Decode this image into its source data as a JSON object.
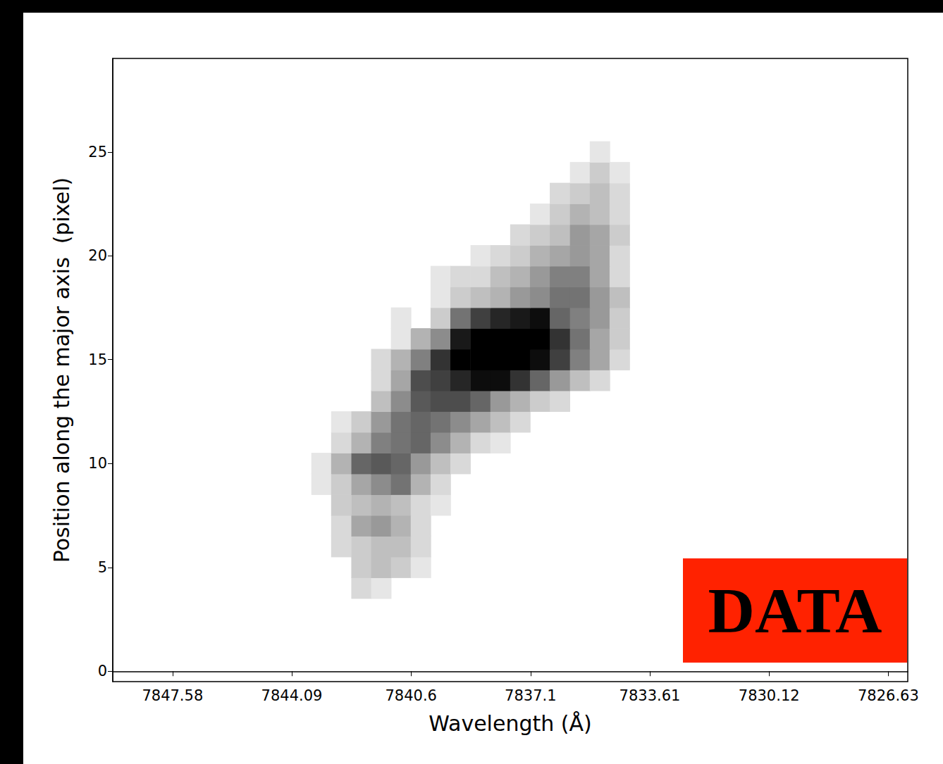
{
  "chart_data": {
    "type": "heatmap",
    "x_label": "Wavelength (Å)",
    "y_label": "Position along the major axis  (pixel)",
    "annotation": "DATA",
    "xlim": [
      7849.33,
      7826.06
    ],
    "xticks": [
      7847.58,
      7844.09,
      7840.6,
      7837.1,
      7833.61,
      7830.12,
      7826.63
    ],
    "ylim": [
      -0.5,
      29.5
    ],
    "yticks": [
      0,
      5,
      10,
      15,
      20,
      25
    ],
    "grid": false,
    "color_range": [
      0,
      1
    ],
    "cells": [
      [
        7842.05,
        4,
        0.15
      ],
      [
        7841.47,
        4,
        0.1
      ],
      [
        7842.05,
        5,
        0.2
      ],
      [
        7841.47,
        5,
        0.25
      ],
      [
        7840.89,
        5,
        0.2
      ],
      [
        7840.31,
        5,
        0.1
      ],
      [
        7842.64,
        6,
        0.15
      ],
      [
        7842.05,
        6,
        0.2
      ],
      [
        7841.47,
        6,
        0.25
      ],
      [
        7840.89,
        6,
        0.25
      ],
      [
        7840.31,
        6,
        0.15
      ],
      [
        7842.64,
        7,
        0.15
      ],
      [
        7842.05,
        7,
        0.35
      ],
      [
        7841.47,
        7,
        0.4
      ],
      [
        7840.89,
        7,
        0.3
      ],
      [
        7840.31,
        7,
        0.15
      ],
      [
        7842.64,
        8,
        0.2
      ],
      [
        7842.05,
        8,
        0.25
      ],
      [
        7841.47,
        8,
        0.3
      ],
      [
        7840.89,
        8,
        0.25
      ],
      [
        7840.31,
        8,
        0.15
      ],
      [
        7839.73,
        8,
        0.1
      ],
      [
        7843.22,
        9,
        0.1
      ],
      [
        7842.64,
        9,
        0.2
      ],
      [
        7842.05,
        9,
        0.35
      ],
      [
        7841.47,
        9,
        0.45
      ],
      [
        7840.89,
        9,
        0.55
      ],
      [
        7840.31,
        9,
        0.3
      ],
      [
        7839.73,
        9,
        0.15
      ],
      [
        7843.22,
        10,
        0.1
      ],
      [
        7842.64,
        10,
        0.3
      ],
      [
        7842.05,
        10,
        0.6
      ],
      [
        7841.47,
        10,
        0.65
      ],
      [
        7840.89,
        10,
        0.6
      ],
      [
        7840.31,
        10,
        0.4
      ],
      [
        7839.73,
        10,
        0.25
      ],
      [
        7839.15,
        10,
        0.15
      ],
      [
        7842.64,
        11,
        0.15
      ],
      [
        7842.05,
        11,
        0.3
      ],
      [
        7841.47,
        11,
        0.5
      ],
      [
        7840.89,
        11,
        0.55
      ],
      [
        7840.31,
        11,
        0.6
      ],
      [
        7839.73,
        11,
        0.45
      ],
      [
        7839.15,
        11,
        0.3
      ],
      [
        7838.56,
        11,
        0.15
      ],
      [
        7837.98,
        11,
        0.1
      ],
      [
        7842.64,
        12,
        0.1
      ],
      [
        7842.05,
        12,
        0.2
      ],
      [
        7841.47,
        12,
        0.4
      ],
      [
        7840.89,
        12,
        0.55
      ],
      [
        7840.31,
        12,
        0.6
      ],
      [
        7839.73,
        12,
        0.55
      ],
      [
        7839.15,
        12,
        0.45
      ],
      [
        7838.56,
        12,
        0.35
      ],
      [
        7837.98,
        12,
        0.25
      ],
      [
        7837.4,
        12,
        0.15
      ],
      [
        7841.47,
        13,
        0.25
      ],
      [
        7840.89,
        13,
        0.45
      ],
      [
        7840.31,
        13,
        0.65
      ],
      [
        7839.73,
        13,
        0.7
      ],
      [
        7839.15,
        13,
        0.7
      ],
      [
        7838.56,
        13,
        0.6
      ],
      [
        7837.98,
        13,
        0.4
      ],
      [
        7837.4,
        13,
        0.3
      ],
      [
        7836.82,
        13,
        0.2
      ],
      [
        7836.24,
        13,
        0.15
      ],
      [
        7841.47,
        14,
        0.15
      ],
      [
        7840.89,
        14,
        0.35
      ],
      [
        7840.31,
        14,
        0.7
      ],
      [
        7839.73,
        14,
        0.75
      ],
      [
        7839.15,
        14,
        0.85
      ],
      [
        7838.56,
        14,
        0.95
      ],
      [
        7837.98,
        14,
        0.95
      ],
      [
        7837.4,
        14,
        0.8
      ],
      [
        7836.82,
        14,
        0.6
      ],
      [
        7836.24,
        14,
        0.4
      ],
      [
        7835.65,
        14,
        0.25
      ],
      [
        7835.07,
        14,
        0.15
      ],
      [
        7841.47,
        15,
        0.15
      ],
      [
        7840.89,
        15,
        0.3
      ],
      [
        7840.31,
        15,
        0.5
      ],
      [
        7839.73,
        15,
        0.8
      ],
      [
        7839.15,
        15,
        1
      ],
      [
        7838.56,
        15,
        1
      ],
      [
        7837.98,
        15,
        1
      ],
      [
        7837.4,
        15,
        1
      ],
      [
        7836.82,
        15,
        0.95
      ],
      [
        7836.24,
        15,
        0.75
      ],
      [
        7835.65,
        15,
        0.5
      ],
      [
        7835.07,
        15,
        0.35
      ],
      [
        7834.49,
        15,
        0.15
      ],
      [
        7840.89,
        16,
        0.1
      ],
      [
        7840.31,
        16,
        0.3
      ],
      [
        7839.73,
        16,
        0.45
      ],
      [
        7839.15,
        16,
        0.9
      ],
      [
        7838.56,
        16,
        1
      ],
      [
        7837.98,
        16,
        1
      ],
      [
        7837.4,
        16,
        1
      ],
      [
        7836.82,
        16,
        1
      ],
      [
        7836.24,
        16,
        0.8
      ],
      [
        7835.65,
        16,
        0.55
      ],
      [
        7835.07,
        16,
        0.35
      ],
      [
        7834.49,
        16,
        0.2
      ],
      [
        7840.89,
        17,
        0.1
      ],
      [
        7839.73,
        17,
        0.2
      ],
      [
        7839.15,
        17,
        0.55
      ],
      [
        7838.56,
        17,
        0.75
      ],
      [
        7837.98,
        17,
        0.85
      ],
      [
        7837.4,
        17,
        0.9
      ],
      [
        7836.82,
        17,
        0.95
      ],
      [
        7836.24,
        17,
        0.6
      ],
      [
        7835.65,
        17,
        0.5
      ],
      [
        7835.07,
        17,
        0.4
      ],
      [
        7834.49,
        17,
        0.2
      ],
      [
        7839.73,
        18,
        0.1
      ],
      [
        7839.15,
        18,
        0.2
      ],
      [
        7838.56,
        18,
        0.25
      ],
      [
        7837.98,
        18,
        0.3
      ],
      [
        7837.4,
        18,
        0.4
      ],
      [
        7836.82,
        18,
        0.45
      ],
      [
        7836.24,
        18,
        0.55
      ],
      [
        7835.65,
        18,
        0.55
      ],
      [
        7835.07,
        18,
        0.4
      ],
      [
        7834.49,
        18,
        0.25
      ],
      [
        7839.73,
        19,
        0.1
      ],
      [
        7839.15,
        19,
        0.15
      ],
      [
        7838.56,
        19,
        0.15
      ],
      [
        7837.98,
        19,
        0.25
      ],
      [
        7837.4,
        19,
        0.3
      ],
      [
        7836.82,
        19,
        0.4
      ],
      [
        7836.24,
        19,
        0.5
      ],
      [
        7835.65,
        19,
        0.5
      ],
      [
        7835.07,
        19,
        0.35
      ],
      [
        7834.49,
        19,
        0.15
      ],
      [
        7838.56,
        20,
        0.1
      ],
      [
        7837.98,
        20,
        0.15
      ],
      [
        7837.4,
        20,
        0.2
      ],
      [
        7836.82,
        20,
        0.3
      ],
      [
        7836.24,
        20,
        0.35
      ],
      [
        7835.65,
        20,
        0.4
      ],
      [
        7835.07,
        20,
        0.35
      ],
      [
        7834.49,
        20,
        0.15
      ],
      [
        7837.4,
        21,
        0.15
      ],
      [
        7836.82,
        21,
        0.2
      ],
      [
        7836.24,
        21,
        0.25
      ],
      [
        7835.65,
        21,
        0.4
      ],
      [
        7835.07,
        21,
        0.35
      ],
      [
        7834.49,
        21,
        0.2
      ],
      [
        7836.82,
        22,
        0.1
      ],
      [
        7836.24,
        22,
        0.2
      ],
      [
        7835.65,
        22,
        0.3
      ],
      [
        7835.07,
        22,
        0.25
      ],
      [
        7834.49,
        22,
        0.15
      ],
      [
        7836.24,
        23,
        0.15
      ],
      [
        7835.65,
        23,
        0.2
      ],
      [
        7835.07,
        23,
        0.25
      ],
      [
        7834.49,
        23,
        0.15
      ],
      [
        7835.65,
        24,
        0.1
      ],
      [
        7835.07,
        24,
        0.2
      ],
      [
        7834.49,
        24,
        0.1
      ],
      [
        7835.07,
        25,
        0.1
      ]
    ]
  }
}
